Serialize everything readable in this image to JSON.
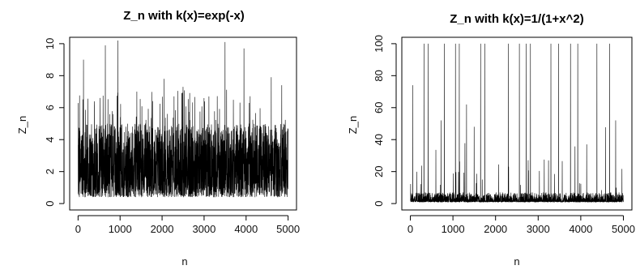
{
  "chart_data": [
    {
      "type": "line",
      "title": "Z_n with k(x)=exp(-x)",
      "xlabel": "n",
      "ylabel": "Z_n",
      "xlim": [
        0,
        5000
      ],
      "ylim": [
        0,
        10
      ],
      "grid": false,
      "legend": "none",
      "x_ticks": [
        0,
        1000,
        2000,
        3000,
        4000,
        5000
      ],
      "y_ticks": [
        0,
        2,
        4,
        6,
        8,
        10
      ],
      "series": [
        {
          "n_points": 5000,
          "y_range": [
            0.2,
            10.2
          ],
          "typical_band": [
            0.5,
            5.5
          ],
          "peaks": [
            {
              "x": 130,
              "y": 9.0
            },
            {
              "x": 650,
              "y": 9.9
            },
            {
              "x": 950,
              "y": 10.2
            },
            {
              "x": 1400,
              "y": 7.0
            },
            {
              "x": 2050,
              "y": 7.8
            },
            {
              "x": 2500,
              "y": 7.3
            },
            {
              "x": 3000,
              "y": 6.6
            },
            {
              "x": 3500,
              "y": 10.1
            },
            {
              "x": 3950,
              "y": 9.7
            },
            {
              "x": 4600,
              "y": 7.9
            },
            {
              "x": 4850,
              "y": 7.4
            }
          ],
          "color": "#000000"
        }
      ]
    },
    {
      "type": "line",
      "title": "Z_n with k(x)=1/(1+x^2)",
      "xlabel": "n",
      "ylabel": "Z_n",
      "xlim": [
        0,
        5000
      ],
      "ylim": [
        0,
        100
      ],
      "grid": false,
      "legend": "none",
      "x_ticks": [
        0,
        1000,
        2000,
        3000,
        4000,
        5000
      ],
      "y_ticks": [
        0,
        20,
        40,
        60,
        80,
        100
      ],
      "series": [
        {
          "n_points": 5000,
          "y_range": [
            0.5,
            100
          ],
          "typical_band": [
            1,
            8
          ],
          "peaks": [
            {
              "x": 60,
              "y": 74
            },
            {
              "x": 320,
              "y": 100
            },
            {
              "x": 420,
              "y": 100
            },
            {
              "x": 720,
              "y": 52
            },
            {
              "x": 800,
              "y": 100
            },
            {
              "x": 1060,
              "y": 100
            },
            {
              "x": 1150,
              "y": 100
            },
            {
              "x": 1320,
              "y": 62
            },
            {
              "x": 1650,
              "y": 100
            },
            {
              "x": 1750,
              "y": 100
            },
            {
              "x": 2300,
              "y": 100
            },
            {
              "x": 2560,
              "y": 100
            },
            {
              "x": 2720,
              "y": 100
            },
            {
              "x": 2820,
              "y": 100
            },
            {
              "x": 3300,
              "y": 100
            },
            {
              "x": 3480,
              "y": 100
            },
            {
              "x": 3760,
              "y": 100
            },
            {
              "x": 3930,
              "y": 100
            },
            {
              "x": 4380,
              "y": 100
            },
            {
              "x": 4680,
              "y": 100
            },
            {
              "x": 4820,
              "y": 52
            }
          ],
          "color": "#000000"
        }
      ]
    }
  ]
}
